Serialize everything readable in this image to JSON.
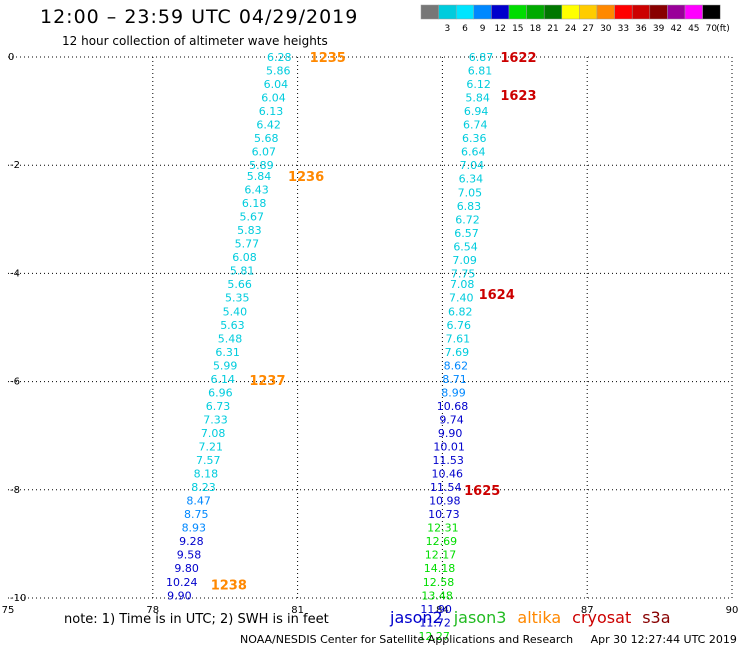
{
  "header": {
    "title": "12:00 – 23:59 UTC 04/29/2019",
    "subtitle": "12 hour collection of altimeter wave heights"
  },
  "colors": {
    "text": "#000000",
    "jason2": "#0000cc",
    "jason3": "#22bb22",
    "altika": "#ff8800",
    "cryosat": "#cc0000",
    "s3a": "#880000"
  },
  "legend": {
    "unit": "(ft)",
    "bins": [
      {
        "label": "",
        "color": "#777777"
      },
      {
        "label": "3",
        "color": "#00ccdd"
      },
      {
        "label": "6",
        "color": "#00e5ff"
      },
      {
        "label": "9",
        "color": "#0088ff"
      },
      {
        "label": "12",
        "color": "#0000cc"
      },
      {
        "label": "15",
        "color": "#00dd00"
      },
      {
        "label": "18",
        "color": "#00aa00"
      },
      {
        "label": "21",
        "color": "#007700"
      },
      {
        "label": "24",
        "color": "#ffff00"
      },
      {
        "label": "27",
        "color": "#ffcc00"
      },
      {
        "label": "30",
        "color": "#ff8800"
      },
      {
        "label": "33",
        "color": "#ff0000"
      },
      {
        "label": "36",
        "color": "#cc0000"
      },
      {
        "label": "39",
        "color": "#880000"
      },
      {
        "label": "42",
        "color": "#990099"
      },
      {
        "label": "45",
        "color": "#ff00ff"
      },
      {
        "label": "70",
        "color": "#000000"
      }
    ]
  },
  "note": "note: 1) Time is in UTC; 2) SWH is in feet",
  "satellites": [
    {
      "name": "jason2",
      "color": "#0000cc"
    },
    {
      "name": "jason3",
      "color": "#22bb22"
    },
    {
      "name": "altika",
      "color": "#ff8800"
    },
    {
      "name": "cryosat",
      "color": "#cc0000"
    },
    {
      "name": "s3a",
      "color": "#880000"
    }
  ],
  "footer": {
    "agency": "NOAA/NESDIS Center for Satellite Applications and Research",
    "timestamp": "Apr 30 12:27:44 UTC 2019"
  },
  "chart_data": {
    "type": "scatter",
    "xlim": [
      75,
      90
    ],
    "ylim": [
      -10,
      0
    ],
    "x_ticks": [
      "75",
      "78",
      "81",
      "84",
      "87",
      "90"
    ],
    "y_ticks": [
      "0",
      "-2",
      "-4",
      "-6",
      "-8",
      "-10"
    ],
    "grid": true,
    "time_labels": [
      {
        "text": "1235",
        "x": 81.25,
        "y": 0.0,
        "color": "#ff8800"
      },
      {
        "text": "1236",
        "x": 80.8,
        "y": -2.2,
        "color": "#ff8800"
      },
      {
        "text": "1237",
        "x": 80.0,
        "y": -5.97,
        "color": "#ff8800"
      },
      {
        "text": "1238",
        "x": 79.2,
        "y": -9.75,
        "color": "#ff8800"
      },
      {
        "text": "1622",
        "x": 85.2,
        "y": 0.0,
        "color": "#cc0000"
      },
      {
        "text": "1623",
        "x": 85.2,
        "y": -0.7,
        "color": "#cc0000"
      },
      {
        "text": "1624",
        "x": 84.75,
        "y": -4.38,
        "color": "#cc0000"
      },
      {
        "text": "1625",
        "x": 84.45,
        "y": -8.0,
        "color": "#cc0000"
      }
    ],
    "series": [
      {
        "name": "altika",
        "points": [
          {
            "x": 80.62,
            "y": 0.0,
            "v": "6.28",
            "c": "#00ccdd"
          },
          {
            "x": 80.6,
            "y": -0.25,
            "v": "5.86",
            "c": "#00ccdd"
          },
          {
            "x": 80.55,
            "y": -0.5,
            "v": "6.04",
            "c": "#00ccdd"
          },
          {
            "x": 80.5,
            "y": -0.75,
            "v": "6.04",
            "c": "#00ccdd"
          },
          {
            "x": 80.45,
            "y": -1.0,
            "v": "6.13",
            "c": "#00ccdd"
          },
          {
            "x": 80.4,
            "y": -1.25,
            "v": "6.42",
            "c": "#00ccdd"
          },
          {
            "x": 80.35,
            "y": -1.5,
            "v": "5.68",
            "c": "#00ccdd"
          },
          {
            "x": 80.3,
            "y": -1.75,
            "v": "6.07",
            "c": "#00ccdd"
          },
          {
            "x": 80.25,
            "y": -2.0,
            "v": "5.89",
            "c": "#00ccdd"
          },
          {
            "x": 80.2,
            "y": -2.2,
            "v": "5.84",
            "c": "#00ccdd"
          },
          {
            "x": 80.15,
            "y": -2.45,
            "v": "6.43",
            "c": "#00ccdd"
          },
          {
            "x": 80.1,
            "y": -2.7,
            "v": "6.18",
            "c": "#00ccdd"
          },
          {
            "x": 80.05,
            "y": -2.95,
            "v": "5.67",
            "c": "#00ccdd"
          },
          {
            "x": 80.0,
            "y": -3.2,
            "v": "5.83",
            "c": "#00ccdd"
          },
          {
            "x": 79.95,
            "y": -3.45,
            "v": "5.77",
            "c": "#00ccdd"
          },
          {
            "x": 79.9,
            "y": -3.7,
            "v": "6.08",
            "c": "#00ccdd"
          },
          {
            "x": 79.85,
            "y": -3.95,
            "v": "5.81",
            "c": "#00ccdd"
          },
          {
            "x": 79.8,
            "y": -4.2,
            "v": "5.66",
            "c": "#00ccdd"
          },
          {
            "x": 79.75,
            "y": -4.45,
            "v": "5.35",
            "c": "#00ccdd"
          },
          {
            "x": 79.7,
            "y": -4.7,
            "v": "5.40",
            "c": "#00ccdd"
          },
          {
            "x": 79.65,
            "y": -4.95,
            "v": "5.63",
            "c": "#00ccdd"
          },
          {
            "x": 79.6,
            "y": -5.2,
            "v": "5.48",
            "c": "#00ccdd"
          },
          {
            "x": 79.55,
            "y": -5.45,
            "v": "6.31",
            "c": "#00ccdd"
          },
          {
            "x": 79.5,
            "y": -5.7,
            "v": "5.99",
            "c": "#00ccdd"
          },
          {
            "x": 79.45,
            "y": -5.95,
            "v": "6.14",
            "c": "#00ccdd"
          },
          {
            "x": 79.4,
            "y": -6.2,
            "v": "6.96",
            "c": "#00ccdd"
          },
          {
            "x": 79.35,
            "y": -6.45,
            "v": "6.73",
            "c": "#00ccdd"
          },
          {
            "x": 79.3,
            "y": -6.7,
            "v": "7.33",
            "c": "#00ccdd"
          },
          {
            "x": 79.25,
            "y": -6.95,
            "v": "7.08",
            "c": "#00ccdd"
          },
          {
            "x": 79.2,
            "y": -7.2,
            "v": "7.21",
            "c": "#00ccdd"
          },
          {
            "x": 79.15,
            "y": -7.45,
            "v": "7.57",
            "c": "#00ccdd"
          },
          {
            "x": 79.1,
            "y": -7.7,
            "v": "8.18",
            "c": "#00ccdd"
          },
          {
            "x": 79.05,
            "y": -7.95,
            "v": "8.23",
            "c": "#00ccdd"
          },
          {
            "x": 78.95,
            "y": -8.2,
            "v": "8.47",
            "c": "#0088ff"
          },
          {
            "x": 78.9,
            "y": -8.45,
            "v": "8.75",
            "c": "#0088ff"
          },
          {
            "x": 78.85,
            "y": -8.7,
            "v": "8.93",
            "c": "#0088ff"
          },
          {
            "x": 78.8,
            "y": -8.95,
            "v": "9.28",
            "c": "#0000cc"
          },
          {
            "x": 78.75,
            "y": -9.2,
            "v": "9.58",
            "c": "#0000cc"
          },
          {
            "x": 78.7,
            "y": -9.45,
            "v": "9.80",
            "c": "#0000cc"
          },
          {
            "x": 78.6,
            "y": -9.7,
            "v": "10.24",
            "c": "#0000cc"
          },
          {
            "x": 78.55,
            "y": -9.95,
            "v": "9.90",
            "c": "#0000cc"
          }
        ]
      },
      {
        "name": "cryosat",
        "points": [
          {
            "x": 84.8,
            "y": 0.0,
            "v": "6.87",
            "c": "#00ccdd"
          },
          {
            "x": 84.78,
            "y": -0.25,
            "v": "6.81",
            "c": "#00ccdd"
          },
          {
            "x": 84.75,
            "y": -0.5,
            "v": "6.12",
            "c": "#00ccdd"
          },
          {
            "x": 84.73,
            "y": -0.75,
            "v": "5.84",
            "c": "#00ccdd"
          },
          {
            "x": 84.7,
            "y": -1.0,
            "v": "6.94",
            "c": "#00ccdd"
          },
          {
            "x": 84.68,
            "y": -1.25,
            "v": "6.74",
            "c": "#00ccdd"
          },
          {
            "x": 84.66,
            "y": -1.5,
            "v": "6.36",
            "c": "#00ccdd"
          },
          {
            "x": 84.64,
            "y": -1.75,
            "v": "6.64",
            "c": "#00ccdd"
          },
          {
            "x": 84.61,
            "y": -2.0,
            "v": "7.04",
            "c": "#00ccdd"
          },
          {
            "x": 84.59,
            "y": -2.25,
            "v": "6.34",
            "c": "#00ccdd"
          },
          {
            "x": 84.57,
            "y": -2.5,
            "v": "7.05",
            "c": "#00ccdd"
          },
          {
            "x": 84.55,
            "y": -2.75,
            "v": "6.83",
            "c": "#00ccdd"
          },
          {
            "x": 84.52,
            "y": -3.0,
            "v": "6.72",
            "c": "#00ccdd"
          },
          {
            "x": 84.5,
            "y": -3.25,
            "v": "6.57",
            "c": "#00ccdd"
          },
          {
            "x": 84.48,
            "y": -3.5,
            "v": "6.54",
            "c": "#00ccdd"
          },
          {
            "x": 84.46,
            "y": -3.75,
            "v": "7.09",
            "c": "#00ccdd"
          },
          {
            "x": 84.43,
            "y": -4.0,
            "v": "7.75",
            "c": "#00ccdd"
          },
          {
            "x": 84.41,
            "y": -4.2,
            "v": "7.08",
            "c": "#00ccdd"
          },
          {
            "x": 84.39,
            "y": -4.45,
            "v": "7.40",
            "c": "#00ccdd"
          },
          {
            "x": 84.37,
            "y": -4.7,
            "v": "6.82",
            "c": "#00ccdd"
          },
          {
            "x": 84.34,
            "y": -4.95,
            "v": "6.76",
            "c": "#00ccdd"
          },
          {
            "x": 84.32,
            "y": -5.2,
            "v": "7.61",
            "c": "#00ccdd"
          },
          {
            "x": 84.3,
            "y": -5.45,
            "v": "7.69",
            "c": "#00ccdd"
          },
          {
            "x": 84.28,
            "y": -5.7,
            "v": "8.62",
            "c": "#0088ff"
          },
          {
            "x": 84.25,
            "y": -5.95,
            "v": "8.71",
            "c": "#0088ff"
          },
          {
            "x": 84.23,
            "y": -6.2,
            "v": "8.99",
            "c": "#0088ff"
          },
          {
            "x": 84.21,
            "y": -6.45,
            "v": "10.68",
            "c": "#0000cc"
          },
          {
            "x": 84.19,
            "y": -6.7,
            "v": "9.74",
            "c": "#0000cc"
          },
          {
            "x": 84.16,
            "y": -6.95,
            "v": "9.90",
            "c": "#0000cc"
          },
          {
            "x": 84.14,
            "y": -7.2,
            "v": "10.01",
            "c": "#0000cc"
          },
          {
            "x": 84.12,
            "y": -7.45,
            "v": "11.53",
            "c": "#0000cc"
          },
          {
            "x": 84.1,
            "y": -7.7,
            "v": "10.46",
            "c": "#0000cc"
          },
          {
            "x": 84.07,
            "y": -7.95,
            "v": "11.54",
            "c": "#0000cc"
          },
          {
            "x": 84.05,
            "y": -8.2,
            "v": "10.98",
            "c": "#0000cc"
          },
          {
            "x": 84.03,
            "y": -8.45,
            "v": "10.73",
            "c": "#0000cc"
          },
          {
            "x": 84.01,
            "y": -8.7,
            "v": "12.31",
            "c": "#00dd00"
          },
          {
            "x": 83.98,
            "y": -8.95,
            "v": "12.69",
            "c": "#00dd00"
          },
          {
            "x": 83.96,
            "y": -9.2,
            "v": "12.17",
            "c": "#00dd00"
          },
          {
            "x": 83.94,
            "y": -9.45,
            "v": "14.18",
            "c": "#00dd00"
          },
          {
            "x": 83.92,
            "y": -9.7,
            "v": "12.58",
            "c": "#00dd00"
          },
          {
            "x": 83.89,
            "y": -9.95,
            "v": "13.48",
            "c": "#00dd00"
          },
          {
            "x": 83.87,
            "y": -10.2,
            "v": "11.90",
            "c": "#0000cc"
          },
          {
            "x": 83.85,
            "y": -10.45,
            "v": "11.72",
            "c": "#0000cc"
          },
          {
            "x": 83.83,
            "y": -10.7,
            "v": "12.27",
            "c": "#00dd00"
          }
        ]
      }
    ]
  }
}
